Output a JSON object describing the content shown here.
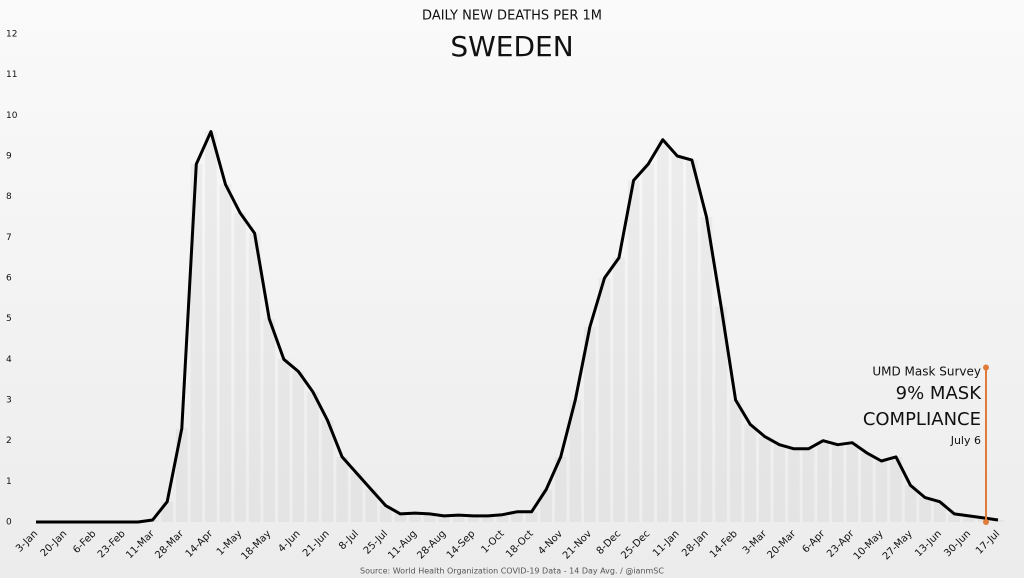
{
  "chart_data": {
    "type": "line",
    "supertitle": "DAILY NEW DEATHS PER 1M",
    "title": "SWEDEN",
    "source": "Source: World Health Organization COVID-19 Data - 14 Day Avg. / @ianmSC",
    "categories": [
      "3-Jan",
      null,
      "20-Jan",
      null,
      "6-Feb",
      null,
      "23-Feb",
      null,
      "11-Mar",
      null,
      "28-Mar",
      null,
      "14-Apr",
      null,
      "1-May",
      null,
      "18-May",
      null,
      "4-Jun",
      null,
      "21-Jun",
      null,
      "8-Jul",
      null,
      "25-Jul",
      null,
      "11-Aug",
      null,
      "28-Aug",
      null,
      "14-Sep",
      null,
      "1-Oct",
      null,
      "18-Oct",
      null,
      "4-Nov",
      null,
      "21-Nov",
      null,
      "8-Dec",
      null,
      "25-Dec",
      null,
      "11-Jan",
      null,
      "28-Jan",
      null,
      "14-Feb",
      null,
      "3-Mar",
      null,
      "20-Mar",
      null,
      "6-Apr",
      null,
      "23-Apr",
      null,
      "10-May",
      null,
      "27-May",
      null,
      "13-Jun",
      null,
      "30-Jun",
      null,
      "17-Jul"
    ],
    "series": [
      {
        "color": "#000000",
        "values": [
          0,
          0,
          0,
          0,
          0,
          0,
          0,
          0,
          0.05,
          0.5,
          2.3,
          8.8,
          9.6,
          8.3,
          7.6,
          7.1,
          5.0,
          4.0,
          3.7,
          3.2,
          2.5,
          1.6,
          1.2,
          0.8,
          0.4,
          0.2,
          0.22,
          0.2,
          0.15,
          0.17,
          0.15,
          0.15,
          0.18,
          0.25,
          0.25,
          0.8,
          1.6,
          3.0,
          4.8,
          6.0,
          6.5,
          8.4,
          8.8,
          9.4,
          9.0,
          8.9,
          7.5,
          5.3,
          3.0,
          2.4,
          2.1,
          1.9,
          1.8,
          1.8,
          2.0,
          1.9,
          1.95,
          1.7,
          1.5,
          1.6,
          0.9,
          0.6,
          0.5,
          0.2,
          0.15,
          0.1,
          0.05
        ]
      }
    ],
    "ylim": [
      0,
      12
    ],
    "yticks": [
      0,
      1,
      2,
      3,
      4,
      5,
      6,
      7,
      8,
      9,
      10,
      11,
      12
    ],
    "annotation": {
      "lines": [
        "UMD Mask Survey",
        "9% MASK",
        "COMPLIANCE",
        "July 6"
      ],
      "color": "#e07b39"
    }
  }
}
